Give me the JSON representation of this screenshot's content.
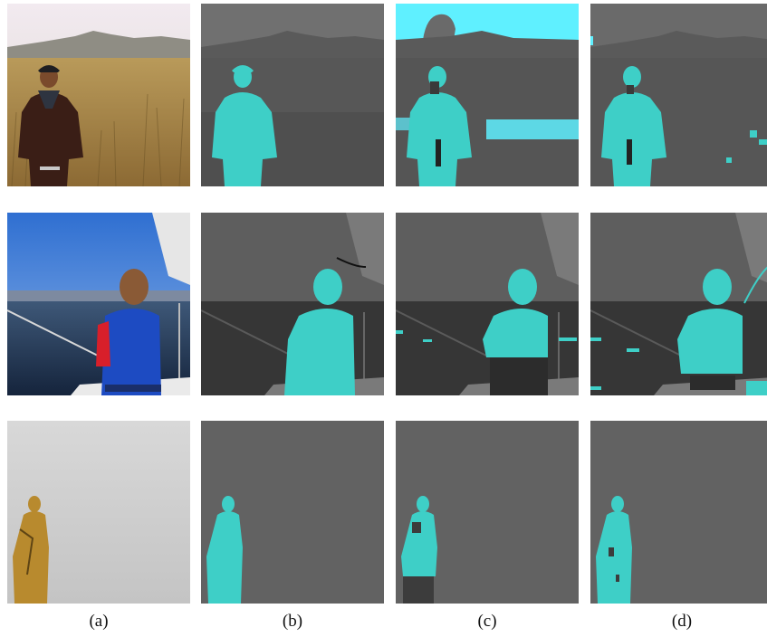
{
  "figure": {
    "captions": [
      "(a)",
      "(b)",
      "(c)",
      "(d)"
    ]
  },
  "colors": {
    "mask": "#3ecfc7",
    "mask_highlight": "#5ff0ff",
    "background_gray": "#5c5c5c"
  }
}
